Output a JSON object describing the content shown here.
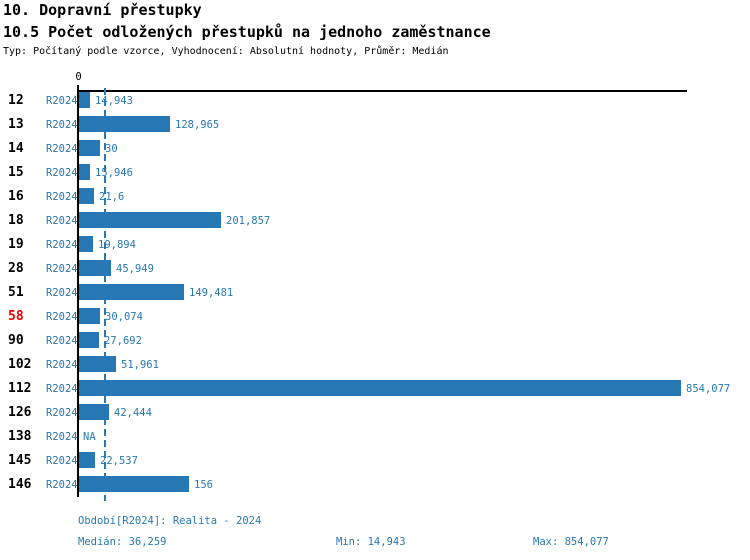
{
  "title": "10. Dopravní přestupky",
  "subtitle": "10.5 Počet odložených přestupků na jednoho zaměstnance",
  "meta": "Typ: Počítaný podle vzorce, Vyhodnocení: Absolutní hodnoty, Průměr: Medián",
  "colors": {
    "bar_blue": "#2878b5",
    "text_blue": "#2878b5",
    "highlight_red": "#ee0000",
    "axis_black": "#000000"
  },
  "axis": {
    "zero_label": "0"
  },
  "chart_data": {
    "type": "bar",
    "orientation": "horizontal",
    "series_label": "R2024",
    "xlim": [
      0,
      854.077
    ],
    "median_value": 36.259,
    "na_text": "NA",
    "rows": [
      {
        "id": "12",
        "series": "R2024",
        "value": 14.943,
        "display": "14,943",
        "highlight": false
      },
      {
        "id": "13",
        "series": "R2024",
        "value": 128.965,
        "display": "128,965",
        "highlight": false
      },
      {
        "id": "14",
        "series": "R2024",
        "value": 30,
        "display": "30",
        "highlight": false
      },
      {
        "id": "15",
        "series": "R2024",
        "value": 15.946,
        "display": "15,946",
        "highlight": false
      },
      {
        "id": "16",
        "series": "R2024",
        "value": 21.6,
        "display": "21,6",
        "highlight": false
      },
      {
        "id": "18",
        "series": "R2024",
        "value": 201.857,
        "display": "201,857",
        "highlight": false
      },
      {
        "id": "19",
        "series": "R2024",
        "value": 19.894,
        "display": "19,894",
        "highlight": false
      },
      {
        "id": "28",
        "series": "R2024",
        "value": 45.949,
        "display": "45,949",
        "highlight": false
      },
      {
        "id": "51",
        "series": "R2024",
        "value": 149.481,
        "display": "149,481",
        "highlight": false
      },
      {
        "id": "58",
        "series": "R2024",
        "value": 30.074,
        "display": "30,074",
        "highlight": true
      },
      {
        "id": "90",
        "series": "R2024",
        "value": 27.692,
        "display": "27,692",
        "highlight": false
      },
      {
        "id": "102",
        "series": "R2024",
        "value": 51.961,
        "display": "51,961",
        "highlight": false
      },
      {
        "id": "112",
        "series": "R2024",
        "value": 854.077,
        "display": "854,077",
        "highlight": false
      },
      {
        "id": "126",
        "series": "R2024",
        "value": 42.444,
        "display": "42,444",
        "highlight": false
      },
      {
        "id": "138",
        "series": "R2024",
        "value": null,
        "display": "NA",
        "highlight": false
      },
      {
        "id": "145",
        "series": "R2024",
        "value": 22.537,
        "display": "22,537",
        "highlight": false
      },
      {
        "id": "146",
        "series": "R2024",
        "value": 156,
        "display": "156",
        "highlight": false
      }
    ]
  },
  "footer": {
    "period": "Období[R2024]: Realita - 2024",
    "median": "Medián: 36,259",
    "min": "Min: 14,943",
    "max": "Max: 854,077"
  }
}
